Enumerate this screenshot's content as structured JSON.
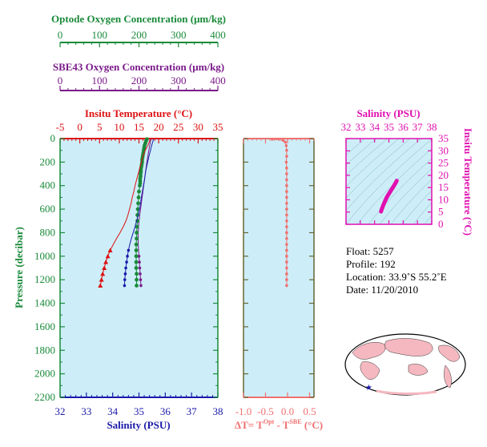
{
  "colors": {
    "panel_bg": "#cdeef8",
    "optode": "#1a8a3a",
    "sbe43": "#7a1a8a",
    "temperature": "#dd1111",
    "salinity": "#1a1aaa",
    "pressure_axis": "#1a8a3a",
    "delta": "#f07070",
    "ts": "#e010b0",
    "delta_axis": "#666633"
  },
  "chart_data": [
    {
      "type": "line",
      "name": "profile",
      "pressure_label": "Pressure (decibar)",
      "pressure_ticks": [
        "0",
        "200",
        "400",
        "600",
        "800",
        "1000",
        "1200",
        "1400",
        "1600",
        "1800",
        "2000",
        "2200"
      ],
      "ylim": [
        0,
        2200
      ],
      "optode_axis": {
        "title": "Optode Oxygen Concentration (μm/kg)",
        "ticks": [
          "0",
          "100",
          "200",
          "300",
          "400"
        ],
        "range": [
          0,
          400
        ]
      },
      "sbe_axis": {
        "title": "SBE43 Oxygen Concentration (μm/kg)",
        "ticks": [
          "0",
          "100",
          "200",
          "300",
          "400"
        ],
        "range": [
          0,
          400
        ]
      },
      "temp_axis": {
        "title": "Insitu Temperature (°C)",
        "ticks": [
          "-5",
          "0",
          "5",
          "10",
          "15",
          "20",
          "25",
          "30",
          "35"
        ],
        "range": [
          -5,
          35
        ]
      },
      "sal_axis": {
        "title": "Salinity (PSU)",
        "ticks": [
          "32",
          "33",
          "34",
          "35",
          "36",
          "37",
          "38"
        ],
        "range": [
          32,
          38
        ]
      },
      "series": [
        {
          "key": "temperature",
          "pressure": [
            5,
            30,
            60,
            100,
            150,
            200,
            250,
            300,
            350,
            400,
            450,
            500,
            550,
            600,
            650,
            700,
            750,
            800,
            850,
            900,
            950,
            1000,
            1050,
            1100,
            1150,
            1200,
            1250
          ],
          "values": [
            17.8,
            17.6,
            17.2,
            16.6,
            16.0,
            15.6,
            15.2,
            14.8,
            14.4,
            14.0,
            13.7,
            13.3,
            13.0,
            12.6,
            12.2,
            11.7,
            11.0,
            10.2,
            9.3,
            8.5,
            7.7,
            7.1,
            6.6,
            6.2,
            5.8,
            5.5,
            5.2
          ]
        },
        {
          "key": "salinity",
          "pressure": [
            5,
            30,
            60,
            100,
            150,
            200,
            250,
            300,
            350,
            400,
            450,
            500,
            550,
            600,
            650,
            700,
            750,
            800,
            850,
            900,
            950,
            1000,
            1050,
            1100,
            1150,
            1200,
            1250
          ],
          "values": [
            35.55,
            35.52,
            35.48,
            35.44,
            35.38,
            35.33,
            35.28,
            35.24,
            35.21,
            35.17,
            35.13,
            35.09,
            35.06,
            35.02,
            34.97,
            34.91,
            34.85,
            34.78,
            34.71,
            34.65,
            34.6,
            34.56,
            34.53,
            34.5,
            34.48,
            34.46,
            34.45
          ]
        },
        {
          "key": "optode",
          "pressure": [
            5,
            20,
            40,
            60,
            80,
            100,
            120,
            140,
            160,
            180,
            200,
            220,
            240,
            260,
            280,
            300,
            320,
            340,
            360,
            380,
            400,
            450,
            500,
            550,
            600,
            650,
            700,
            750,
            800,
            850,
            900,
            950,
            1000,
            1050,
            1100,
            1150,
            1200,
            1250
          ],
          "values": [
            220,
            218,
            216,
            214,
            213,
            212,
            211,
            210,
            209,
            208,
            208,
            207,
            206,
            205,
            205,
            204,
            204,
            203,
            203,
            203,
            202,
            200,
            199,
            198,
            197,
            196,
            196,
            195,
            194,
            194,
            193,
            193,
            193,
            193,
            193,
            194,
            194,
            194
          ]
        },
        {
          "key": "sbe43",
          "pressure": [
            5,
            100,
            200,
            300,
            400,
            500,
            600,
            700,
            800,
            900,
            1000,
            1050,
            1100,
            1150,
            1200,
            1250
          ],
          "values": [
            230,
            225,
            220,
            216,
            212,
            208,
            204,
            200,
            198,
            198,
            200,
            201,
            202,
            203,
            204,
            205
          ]
        }
      ]
    },
    {
      "type": "scatter",
      "name": "delta",
      "xlabel_prefix": "ΔT= T",
      "xlabel_sup1": "Opt",
      "xlabel_mid": " - T",
      "xlabel_sup2": "SBE",
      "xlabel_suffix": " (°C)",
      "x_ticks": [
        "-1.0",
        "-0.5",
        "0.0",
        "0.5"
      ],
      "xlim": [
        -1.0,
        0.6
      ],
      "pressure": [
        5,
        15,
        30,
        60,
        100,
        150,
        200,
        250,
        300,
        350,
        400,
        450,
        500,
        550,
        600,
        650,
        700,
        750,
        800,
        850,
        900,
        950,
        1000,
        1050,
        1100,
        1150,
        1200,
        1250
      ],
      "values": [
        -0.35,
        -0.1,
        -0.05,
        -0.03,
        -0.02,
        -0.02,
        -0.03,
        -0.02,
        -0.02,
        -0.02,
        -0.02,
        -0.02,
        -0.02,
        -0.02,
        -0.02,
        -0.02,
        -0.02,
        -0.02,
        -0.02,
        -0.02,
        -0.02,
        -0.02,
        -0.02,
        -0.02,
        -0.02,
        -0.02,
        -0.02,
        -0.02
      ]
    },
    {
      "type": "scatter",
      "name": "ts",
      "title": "Salinity (PSU)",
      "x_ticks": [
        "32",
        "33",
        "34",
        "35",
        "36",
        "37",
        "38"
      ],
      "xlim": [
        32,
        38
      ],
      "ylabel": "Insitu Temperature (°C)",
      "y_ticks": [
        "0",
        "5",
        "10",
        "15",
        "20",
        "25",
        "30",
        "35"
      ],
      "ylim": [
        0,
        35
      ],
      "salinity": [
        35.55,
        35.5,
        35.44,
        35.36,
        35.28,
        35.21,
        35.14,
        35.06,
        34.97,
        34.85,
        34.72,
        34.6,
        34.53,
        34.48,
        34.45
      ],
      "temperature": [
        17.8,
        17.2,
        16.6,
        15.8,
        15.0,
        14.4,
        13.8,
        13.0,
        12.2,
        11.0,
        9.3,
        7.7,
        6.6,
        5.8,
        5.2
      ]
    }
  ],
  "info": {
    "float": "Float:  5257",
    "profile": "Profile:  192",
    "location": "Location:  33.9˚S  55.2˚E",
    "date": "Date:  11/20/2010"
  }
}
